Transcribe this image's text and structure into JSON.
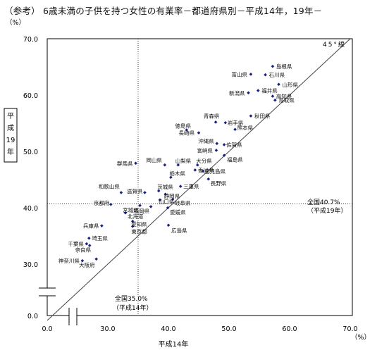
{
  "title": "（参考） 6歳未満の子供を持つ女性の有業率－都道府県別－平成14年，19年－",
  "chart_data": {
    "type": "scatter",
    "xlabel": "平成14年",
    "ylabel": "平成19年",
    "unit": "（%）",
    "xlim": [
      0,
      70
    ],
    "ylim": [
      0,
      70
    ],
    "x_ticks": [
      "0.0",
      "30.0",
      "40.0",
      "50.0",
      "60.0",
      "70.0"
    ],
    "y_ticks": [
      "0.0",
      "30.0",
      "40.0",
      "50.0",
      "60.0",
      "70.0"
    ],
    "reference_line_label": "45°線",
    "national_x": {
      "value": 35.0,
      "label_lines": [
        "全国35.0%",
        "（平成14年）"
      ]
    },
    "national_y": {
      "value": 40.7,
      "label_lines": [
        "全国40.7%",
        "（平成19年）"
      ]
    },
    "points": [
      {
        "name": "島根県",
        "x": 57.2,
        "y": 65.1
      },
      {
        "name": "富山県",
        "x": 53.6,
        "y": 63.7
      },
      {
        "name": "石川県",
        "x": 56.0,
        "y": 63.6
      },
      {
        "name": "山形県",
        "x": 58.2,
        "y": 61.9
      },
      {
        "name": "福井県",
        "x": 54.8,
        "y": 60.8
      },
      {
        "name": "新潟県",
        "x": 53.2,
        "y": 60.4
      },
      {
        "name": "高知県",
        "x": 57.2,
        "y": 59.8
      },
      {
        "name": "鳥取県",
        "x": 57.6,
        "y": 59.1
      },
      {
        "name": "秋田県",
        "x": 53.6,
        "y": 56.3
      },
      {
        "name": "青森県",
        "x": 47.8,
        "y": 55.2
      },
      {
        "name": "岩手県",
        "x": 49.4,
        "y": 55.1
      },
      {
        "name": "熊本県",
        "x": 51.0,
        "y": 53.9
      },
      {
        "name": "徳島県",
        "x": 43.0,
        "y": 53.8
      },
      {
        "name": "長崎県",
        "x": 45.0,
        "y": 53.3
      },
      {
        "name": "沖縄県",
        "x": 48.0,
        "y": 51.4
      },
      {
        "name": "佐賀県",
        "x": 49.2,
        "y": 51.2
      },
      {
        "name": "宮崎県",
        "x": 47.9,
        "y": 50.2
      },
      {
        "name": "福島県",
        "x": 49.2,
        "y": 49.3
      },
      {
        "name": "群馬県",
        "x": 34.6,
        "y": 47.9
      },
      {
        "name": "岡山県",
        "x": 39.4,
        "y": 47.6
      },
      {
        "name": "山梨県",
        "x": 41.6,
        "y": 47.6
      },
      {
        "name": "大分県",
        "x": 44.8,
        "y": 47.6
      },
      {
        "name": "香川県",
        "x": 44.4,
        "y": 46.7
      },
      {
        "name": "鹿児島県",
        "x": 45.7,
        "y": 46.5
      },
      {
        "name": "長野県",
        "x": 46.6,
        "y": 45.1
      },
      {
        "name": "栃木県",
        "x": 40.4,
        "y": 45.4
      },
      {
        "name": "和歌山県",
        "x": 32.2,
        "y": 42.7
      },
      {
        "name": "滋賀県",
        "x": 36.1,
        "y": 42.7
      },
      {
        "name": "茨城県",
        "x": 38.4,
        "y": 43.0
      },
      {
        "name": "静岡県",
        "x": 39.5,
        "y": 42.4
      },
      {
        "name": "三重県",
        "x": 42.0,
        "y": 43.8
      },
      {
        "name": "岐阜県",
        "x": 40.7,
        "y": 41.5
      },
      {
        "name": "山口県",
        "x": 38.6,
        "y": 41.4
      },
      {
        "name": "京都府",
        "x": 30.5,
        "y": 40.6
      },
      {
        "name": "宮城県",
        "x": 35.3,
        "y": 40.4
      },
      {
        "name": "福岡県",
        "x": 37.1,
        "y": 40.2
      },
      {
        "name": "愛媛県",
        "x": 39.9,
        "y": 40.0
      },
      {
        "name": "北海道",
        "x": 32.9,
        "y": 39.1
      },
      {
        "name": "愛知県",
        "x": 34.1,
        "y": 37.6
      },
      {
        "name": "東京都",
        "x": 34.1,
        "y": 36.7
      },
      {
        "name": "広島県",
        "x": 40.0,
        "y": 36.9
      },
      {
        "name": "兵庫県",
        "x": 29.0,
        "y": 36.8
      },
      {
        "name": "埼玉県",
        "x": 26.9,
        "y": 34.6
      },
      {
        "name": "千葉県",
        "x": 26.5,
        "y": 33.6
      },
      {
        "name": "奈良県",
        "x": 27.0,
        "y": 33.3
      },
      {
        "name": "神奈川県",
        "x": 25.8,
        "y": 30.6
      },
      {
        "name": "大阪府",
        "x": 28.1,
        "y": 30.9
      }
    ]
  }
}
